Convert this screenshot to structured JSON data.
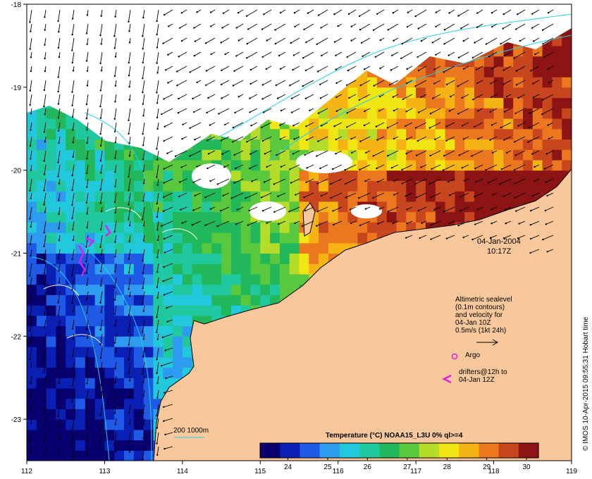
{
  "map": {
    "x_axis": {
      "min": 112,
      "max": 119,
      "ticks": [
        "112",
        "113",
        "114",
        "115",
        "116",
        "117",
        "118",
        "119"
      ]
    },
    "y_axis": {
      "min": -23.5,
      "max": -18,
      "ticks": [
        "-18",
        "-19",
        "-20",
        "-21",
        "-22",
        "-23"
      ]
    },
    "land_color": "#f8c89c",
    "cloud_color": "#ffffff",
    "contour_color": "#22d0e8",
    "drifter_color": "#e020e0"
  },
  "annotations": {
    "date": "04-Jan-2004",
    "time": "10:17Z",
    "altimetry_note": [
      "Altimetric sealevel",
      "(0.1m contours)",
      "and velocity for",
      "04-Jan 10Z",
      "0.5m/s (1kt 24h)"
    ],
    "argo_label": "Argo",
    "drifters_label": [
      "drifters@12h to",
      "04-Jan 12Z"
    ],
    "isobath_label": "200  1000m",
    "credit": "© IMOS 10-Apr-2015 09:55:31 Hobart time"
  },
  "colorbar": {
    "title": "Temperature (°C) NOAA15_L3U 0% ql>=4",
    "min": 23.3,
    "max": 30.3,
    "ticks": [
      "24",
      "25",
      "26",
      "27",
      "28",
      "29",
      "30"
    ],
    "colors": [
      "#08006e",
      "#0a1fb4",
      "#1e5ae6",
      "#2d9bf0",
      "#22c8dc",
      "#20c8a0",
      "#20b85a",
      "#5ac83c",
      "#b4dc28",
      "#f0e614",
      "#f5b414",
      "#eb781e",
      "#c8461e",
      "#8c1414"
    ]
  }
}
